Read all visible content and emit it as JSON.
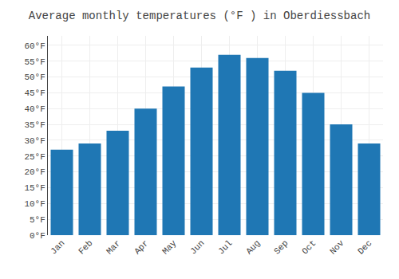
{
  "chart_data": {
    "type": "bar",
    "title": "Average monthly temperatures (°F ) in Oberdiessbach",
    "categories": [
      "Jan",
      "Feb",
      "Mar",
      "Apr",
      "May",
      "Jun",
      "Jul",
      "Aug",
      "Sep",
      "Oct",
      "Nov",
      "Dec"
    ],
    "values": [
      27,
      29,
      33,
      40,
      47,
      53,
      57,
      56,
      52,
      45,
      35,
      29
    ],
    "ylim": [
      0,
      63
    ],
    "yticks": [
      {
        "value": 0,
        "label": "0°F"
      },
      {
        "value": 5,
        "label": "5°F"
      },
      {
        "value": 10,
        "label": "10°F"
      },
      {
        "value": 15,
        "label": "15°F"
      },
      {
        "value": 20,
        "label": "20°F"
      },
      {
        "value": 25,
        "label": "25°F"
      },
      {
        "value": 30,
        "label": "30°F"
      },
      {
        "value": 35,
        "label": "35°F"
      },
      {
        "value": 40,
        "label": "40°F"
      },
      {
        "value": 45,
        "label": "45°F"
      },
      {
        "value": 50,
        "label": "50°F"
      },
      {
        "value": 55,
        "label": "55°F"
      },
      {
        "value": 60,
        "label": "60°F"
      }
    ],
    "grid": true
  }
}
